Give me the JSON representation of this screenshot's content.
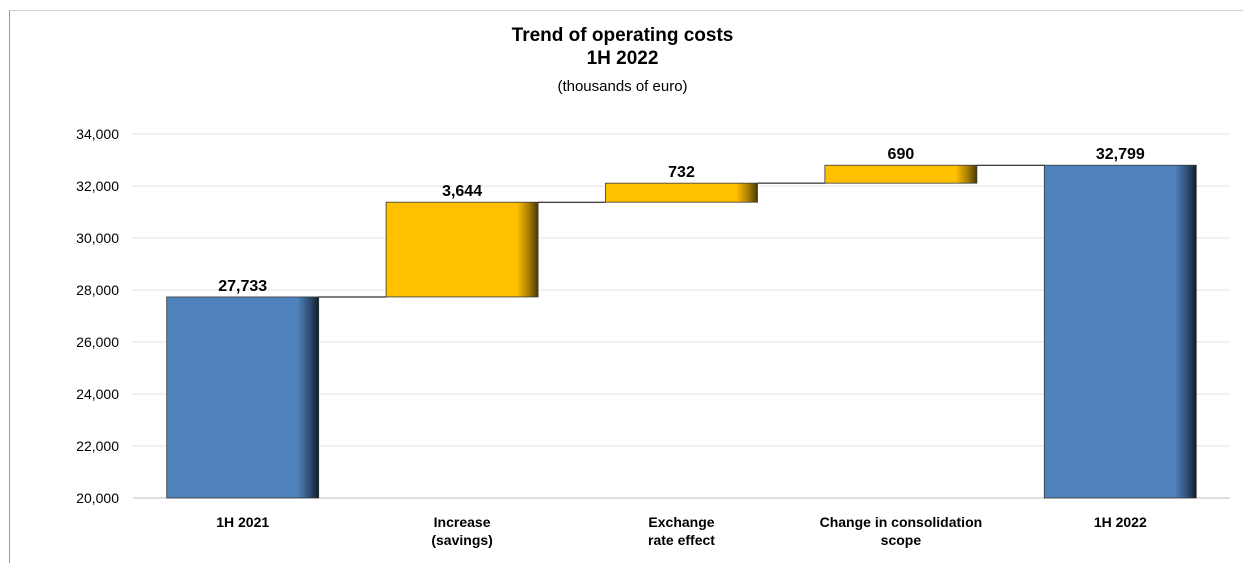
{
  "chart_data": {
    "type": "waterfall",
    "title": "Trend of operating costs",
    "subtitle": "1H 2022",
    "unit_label": "(thousands of euro)",
    "ylim": [
      20000,
      34000
    ],
    "yticks": [
      "20,000",
      "22,000",
      "24,000",
      "26,000",
      "28,000",
      "30,000",
      "32,000",
      "34,000"
    ],
    "grid": true,
    "categories": [
      [
        "1H 2021"
      ],
      [
        "Increase",
        "(savings)"
      ],
      [
        "Exchange",
        "rate effect"
      ],
      [
        "Change in consolidation",
        "scope"
      ],
      [
        "1H 2022"
      ]
    ],
    "bars": [
      {
        "kind": "total",
        "value": 27733,
        "label": "27,733"
      },
      {
        "kind": "delta",
        "value": 3644,
        "label": "3,644"
      },
      {
        "kind": "delta",
        "value": 732,
        "label": "732"
      },
      {
        "kind": "delta",
        "value": 690,
        "label": "690"
      },
      {
        "kind": "total",
        "value": 32799,
        "label": "32,799"
      }
    ],
    "colors": {
      "total": "#4f81bd",
      "delta": "#ffc000",
      "grid": "#e3e3e3",
      "connector": "#000000"
    }
  }
}
